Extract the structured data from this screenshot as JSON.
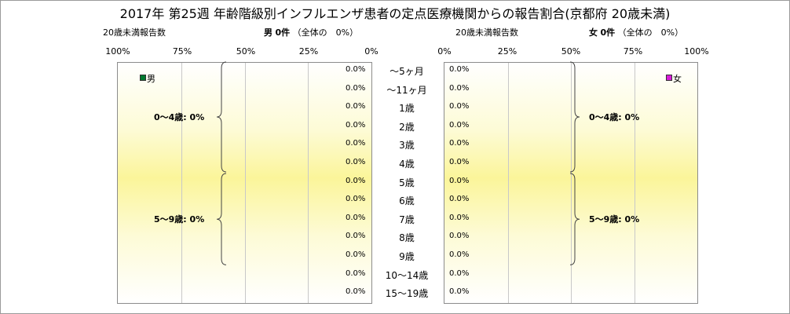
{
  "title": "2017年 第25週 年齢階級別インフルエンザ患者の定点医療機関からの報告割合(京都府 20歳未満)",
  "subtitle_left": {
    "count_label": "20歳未満報告数",
    "gender": "男",
    "cases": "0件",
    "share": "（全体の　0%）"
  },
  "subtitle_right": {
    "count_label": "20歳未満報告数",
    "gender": "女",
    "cases": "0件",
    "share": "（全体の　0%）"
  },
  "colors": {
    "male": "#007a2e",
    "female": "#d81cd8",
    "band": "#fbf59a",
    "grid": "#c8c8c8"
  },
  "chart_data": [
    {
      "type": "bar",
      "orientation": "horizontal",
      "direction": "right-to-left",
      "series": [
        {
          "name": "男",
          "values": [
            0,
            0,
            0,
            0,
            0,
            0,
            0,
            0,
            0,
            0,
            0,
            0,
            0
          ]
        }
      ],
      "categories": [
        "～5ヶ月",
        "～11ヶ月",
        "1歳",
        "2歳",
        "3歳",
        "4歳",
        "5歳",
        "6歳",
        "7歳",
        "8歳",
        "9歳",
        "10～14歳",
        "15～19歳"
      ],
      "data_labels": [
        "0.0%",
        "0.0%",
        "0.0%",
        "0.0%",
        "0.0%",
        "0.0%",
        "0.0%",
        "0.0%",
        "0.0%",
        "0.0%",
        "0.0%",
        "0.0%",
        "0.0%"
      ],
      "x_ticks": [
        "100%",
        "75%",
        "50%",
        "25%",
        "0%"
      ],
      "xlim": [
        0,
        100
      ],
      "grid": true,
      "legend_position": "top-left",
      "groups": [
        {
          "label": "0～4歳: 0%"
        },
        {
          "label": "5～9歳: 0%"
        }
      ]
    },
    {
      "type": "bar",
      "orientation": "horizontal",
      "direction": "left-to-right",
      "series": [
        {
          "name": "女",
          "values": [
            0,
            0,
            0,
            0,
            0,
            0,
            0,
            0,
            0,
            0,
            0,
            0,
            0
          ]
        }
      ],
      "categories": [
        "～5ヶ月",
        "～11ヶ月",
        "1歳",
        "2歳",
        "3歳",
        "4歳",
        "5歳",
        "6歳",
        "7歳",
        "8歳",
        "9歳",
        "10～14歳",
        "15～19歳"
      ],
      "data_labels": [
        "0.0%",
        "0.0%",
        "0.0%",
        "0.0%",
        "0.0%",
        "0.0%",
        "0.0%",
        "0.0%",
        "0.0%",
        "0.0%",
        "0.0%",
        "0.0%",
        "0.0%"
      ],
      "x_ticks": [
        "0%",
        "25%",
        "50%",
        "75%",
        "100%"
      ],
      "xlim": [
        0,
        100
      ],
      "grid": true,
      "legend_position": "top-right",
      "groups": [
        {
          "label": "0～4歳: 0%"
        },
        {
          "label": "5～9歳: 0%"
        }
      ]
    }
  ]
}
